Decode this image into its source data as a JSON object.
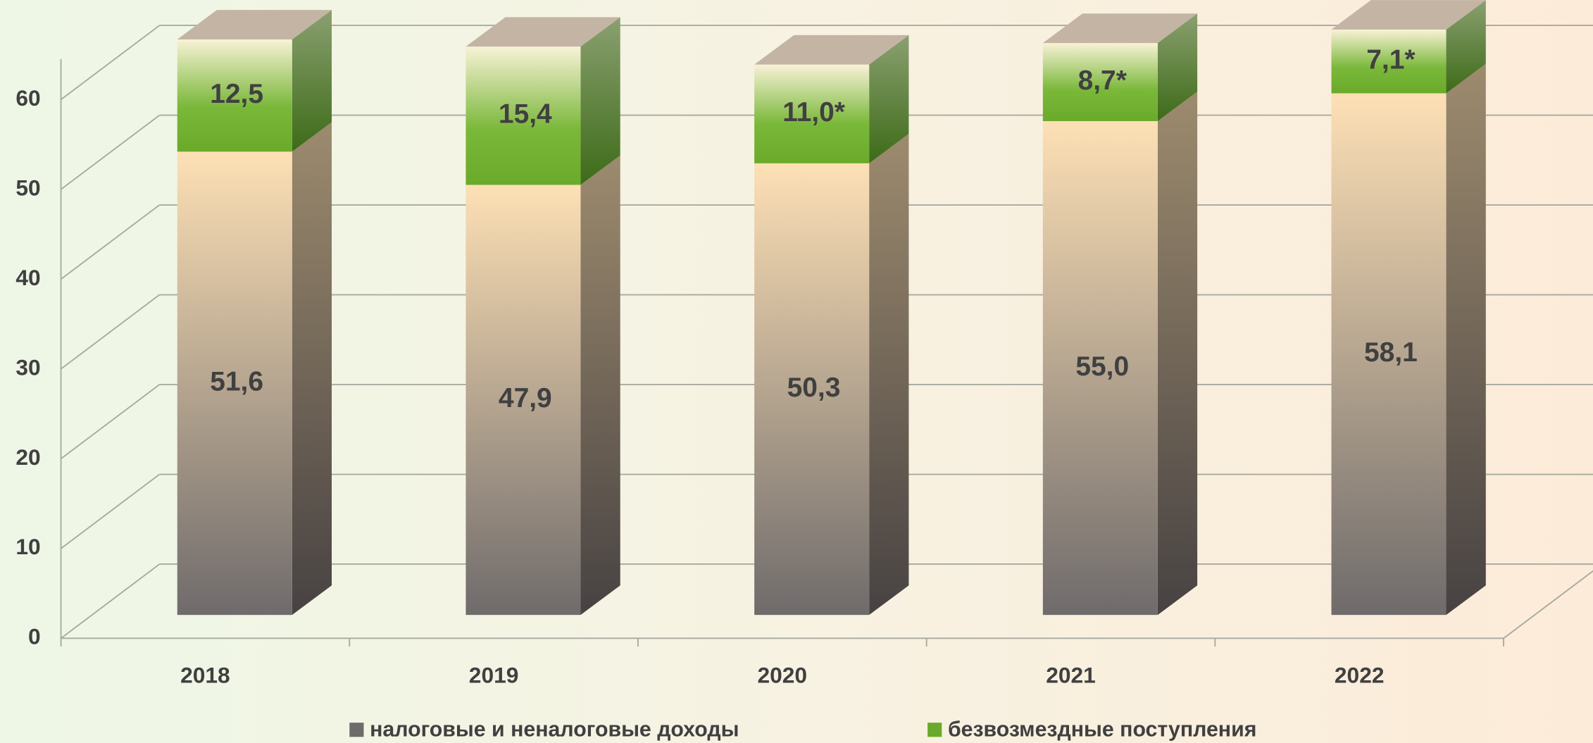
{
  "chart_data": {
    "type": "bar3d_stacked",
    "categories": [
      "2018",
      "2019",
      "2020",
      "2021",
      "2022"
    ],
    "series": [
      {
        "name": "налоговые и неналоговые доходы",
        "color": "#6f6b6b",
        "values": [
          51.6,
          47.9,
          50.3,
          55.0,
          58.1
        ],
        "value_labels": [
          "51,6",
          "47,9",
          "50,3",
          "55,0",
          "58,1"
        ]
      },
      {
        "name": "безвозмездные поступления",
        "color": "#6aaa2a",
        "values": [
          12.5,
          15.4,
          11.0,
          8.7,
          7.1
        ],
        "value_labels": [
          "12,5",
          "15,4",
          "11,0*",
          "8,7*",
          "7,1*"
        ]
      }
    ],
    "ylim": [
      0,
      60
    ],
    "yticks": [
      0,
      10,
      20,
      30,
      40,
      50,
      60
    ],
    "grid": true
  }
}
